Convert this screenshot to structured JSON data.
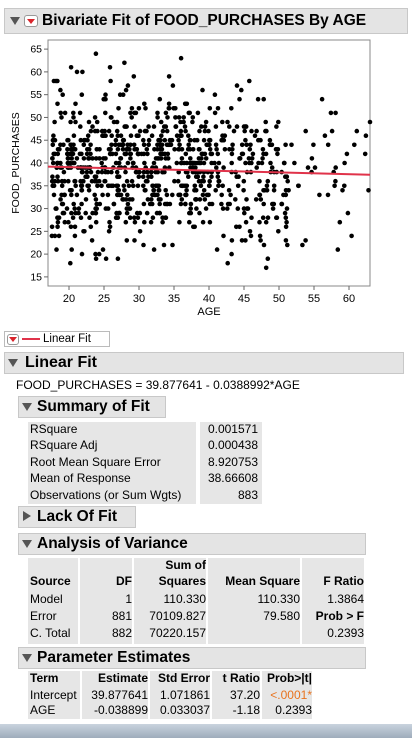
{
  "report": {
    "title": "Bivariate Fit of FOOD_PURCHASES By AGE",
    "equation": "FOOD_PURCHASES = 39.877641 - 0.0388992*AGE"
  },
  "chart_data": {
    "type": "scatter",
    "xlabel": "AGE",
    "ylabel": "FOOD_PURCHASES",
    "xlim": [
      17,
      63
    ],
    "ylim": [
      13,
      67
    ],
    "xticks": [
      "20",
      "25",
      "30",
      "35",
      "40",
      "45",
      "50",
      "55",
      "60"
    ],
    "yticks": [
      "15",
      "20",
      "25",
      "30",
      "35",
      "40",
      "45",
      "50",
      "55",
      "60",
      "65"
    ],
    "n": 883,
    "fit": {
      "intercept": 39.877641,
      "slope": -0.0388992
    },
    "points_note_count": 883
  },
  "legend": {
    "fit_label": "Linear Fit"
  },
  "sections": {
    "linear_fit": "Linear Fit",
    "summary": "Summary of Fit",
    "lack": "Lack Of Fit",
    "anova": "Analysis of Variance",
    "params": "Parameter Estimates"
  },
  "summary_rows": [
    {
      "label": "RSquare",
      "value": "0.001571"
    },
    {
      "label": "RSquare Adj",
      "value": "0.000438"
    },
    {
      "label": "Root Mean Square Error",
      "value": "8.920753"
    },
    {
      "label": "Mean of Response",
      "value": "38.66608"
    },
    {
      "label": "Observations (or Sum Wgts)",
      "value": "883"
    }
  ],
  "anova": {
    "hdr_sum1": "Sum of",
    "headers": [
      "Source",
      "DF",
      "Squares",
      "Mean Square",
      "F Ratio"
    ],
    "rows": [
      {
        "source": "Model",
        "df": "1",
        "ss": "110.330",
        "ms": "110.330",
        "f": "1.3864"
      },
      {
        "source": "Error",
        "df": "881",
        "ss": "70109.827",
        "ms": "79.580",
        "f": "Prob > F"
      },
      {
        "source": "C. Total",
        "df": "882",
        "ss": "70220.157",
        "ms": "",
        "f": "0.2393"
      }
    ]
  },
  "params": {
    "headers": [
      "Term",
      "Estimate",
      "Std Error",
      "t Ratio",
      "Prob>|t|"
    ],
    "rows": [
      {
        "term": "Intercept",
        "est": "39.877641",
        "se": "1.071861",
        "t": "37.20",
        "p": "<.0001*"
      },
      {
        "term": "AGE",
        "est": "-0.038899",
        "se": "0.033037",
        "t": "-1.18",
        "p": "0.2393"
      }
    ]
  },
  "colors": {
    "fit": "#e0334a",
    "sig": "#e8731e",
    "header": "#e4e4e4"
  }
}
